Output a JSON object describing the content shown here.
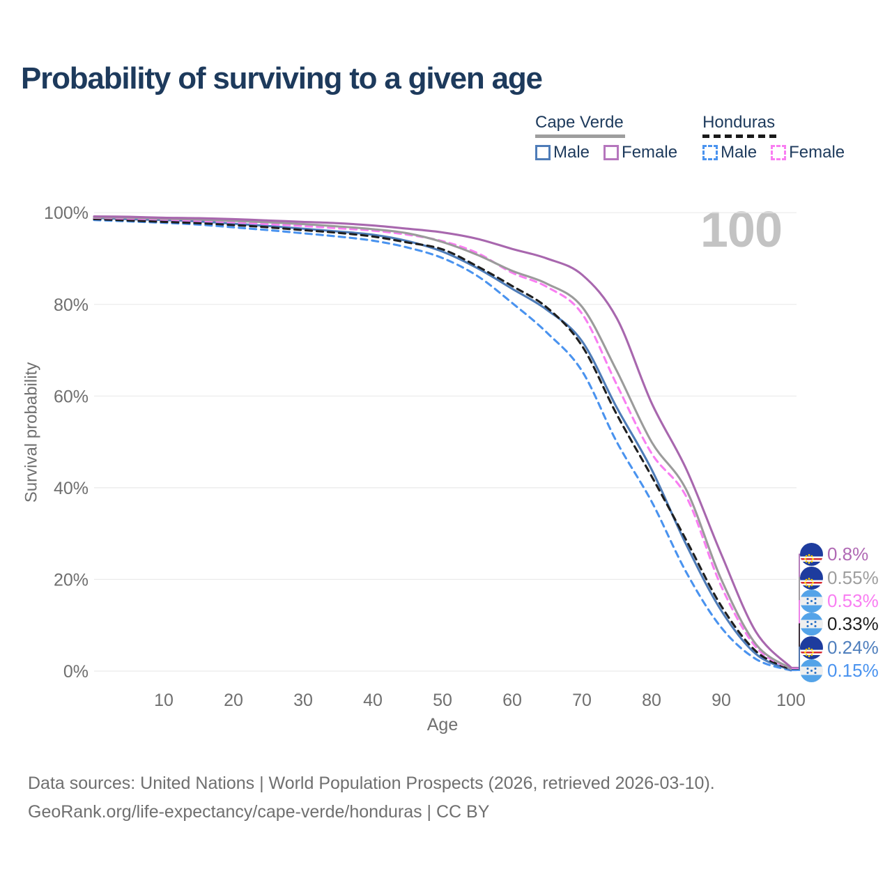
{
  "title": "Probability of surviving to a given age",
  "age_watermark": "100",
  "legend": {
    "groups": [
      {
        "country": "Cape Verde",
        "line_style": "solid",
        "underline_color": "#9e9e9e",
        "items": [
          {
            "label": "Male",
            "color": "#4e7cb8",
            "dashed": false
          },
          {
            "label": "Female",
            "color": "#b576bd",
            "dashed": false
          }
        ]
      },
      {
        "country": "Honduras",
        "line_style": "dashed",
        "underline_color": "#1a1a1a",
        "items": [
          {
            "label": "Male",
            "color": "#4a93ef",
            "dashed": true
          },
          {
            "label": "Female",
            "color": "#f97ef2",
            "dashed": true
          }
        ]
      }
    ]
  },
  "chart_data": {
    "type": "line",
    "title": "Probability of surviving to a given age",
    "xlabel": "Age",
    "ylabel": "Survival probability",
    "xlim": [
      0,
      100
    ],
    "ylim": [
      0,
      100
    ],
    "grid": "horizontal-only",
    "legend_position": "top-right",
    "x_ticks": [
      10,
      20,
      30,
      40,
      50,
      60,
      70,
      80,
      90,
      100
    ],
    "y_ticks": [
      {
        "label": "0%",
        "value": 0
      },
      {
        "label": "20%",
        "value": 20
      },
      {
        "label": "40%",
        "value": 40
      },
      {
        "label": "60%",
        "value": 60
      },
      {
        "label": "80%",
        "value": 80
      },
      {
        "label": "100%",
        "value": 100
      }
    ],
    "x": [
      0,
      5,
      10,
      15,
      20,
      25,
      30,
      35,
      40,
      45,
      50,
      55,
      60,
      65,
      70,
      75,
      80,
      85,
      90,
      95,
      100
    ],
    "series": [
      {
        "name": "Cape Verde Female",
        "country": "Cape Verde",
        "sex": "Female",
        "flag": "cape-verde",
        "color": "#a867ae",
        "label_color": "#b069b4",
        "dash": "solid",
        "end_label": "0.8%",
        "values": [
          99.2,
          99.1,
          98.9,
          98.8,
          98.6,
          98.3,
          98.0,
          97.7,
          97.2,
          96.5,
          95.7,
          94.3,
          92.1,
          90.0,
          86.5,
          77.0,
          58.5,
          44.0,
          25.5,
          8.5,
          0.8
        ]
      },
      {
        "name": "Cape Verde",
        "country": "Cape Verde",
        "sex": "Both",
        "flag": "cape-verde",
        "color": "#9b9b9b",
        "label_color": "#9e9e9e",
        "dash": "solid",
        "end_label": "0.55%",
        "values": [
          99.0,
          98.9,
          98.7,
          98.5,
          98.2,
          97.9,
          97.5,
          97.0,
          96.4,
          95.5,
          93.6,
          90.8,
          87.3,
          84.5,
          79.5,
          65.5,
          50.0,
          39.5,
          20.0,
          5.8,
          0.55
        ]
      },
      {
        "name": "Honduras Female",
        "country": "Honduras",
        "sex": "Female",
        "flag": "honduras",
        "color": "#f97ef2",
        "label_color": "#f97ef2",
        "dash": "dashed",
        "end_label": "0.53%",
        "values": [
          98.9,
          98.7,
          98.5,
          98.2,
          97.9,
          97.5,
          97.1,
          96.6,
          96.1,
          95.2,
          93.8,
          91.2,
          86.9,
          83.8,
          78.0,
          62.5,
          47.5,
          38.0,
          18.5,
          5.2,
          0.53
        ]
      },
      {
        "name": "Honduras",
        "country": "Honduras",
        "sex": "Both",
        "flag": "honduras",
        "color": "#1f1f1f",
        "label_color": "#1f1f1f",
        "dash": "dashed",
        "end_label": "0.33%",
        "values": [
          98.6,
          98.3,
          98.0,
          97.7,
          97.3,
          96.8,
          96.2,
          95.6,
          94.8,
          93.5,
          92.0,
          88.3,
          84.0,
          79.3,
          71.0,
          56.0,
          42.5,
          28.5,
          14.2,
          4.3,
          0.33
        ]
      },
      {
        "name": "Cape Verde Male",
        "country": "Cape Verde",
        "sex": "Male",
        "flag": "cape-verde",
        "color": "#4e7cb8",
        "label_color": "#4f7fbd",
        "dash": "solid",
        "end_label": "0.24%",
        "values": [
          98.9,
          98.6,
          98.4,
          98.1,
          97.6,
          97.1,
          96.5,
          95.9,
          95.2,
          93.8,
          91.5,
          87.9,
          83.4,
          78.8,
          72.0,
          57.5,
          44.0,
          27.5,
          13.2,
          3.7,
          0.24
        ]
      },
      {
        "name": "Honduras Male",
        "country": "Honduras",
        "sex": "Male",
        "flag": "honduras",
        "color": "#4a93ef",
        "label_color": "#4a93ef",
        "dash": "dashed",
        "end_label": "0.15%",
        "values": [
          98.4,
          98.1,
          97.8,
          97.4,
          96.8,
          96.2,
          95.5,
          94.8,
          93.9,
          92.4,
          90.1,
          86.2,
          80.3,
          73.8,
          65.5,
          50.0,
          37.0,
          21.5,
          9.5,
          2.6,
          0.15
        ]
      }
    ]
  },
  "footer": {
    "line1": "Data sources: United Nations | World Population Prospects (2026, retrieved 2026-03-10).",
    "line2": "GeoRank.org/life-expectancy/cape-verde/honduras | CC BY"
  }
}
